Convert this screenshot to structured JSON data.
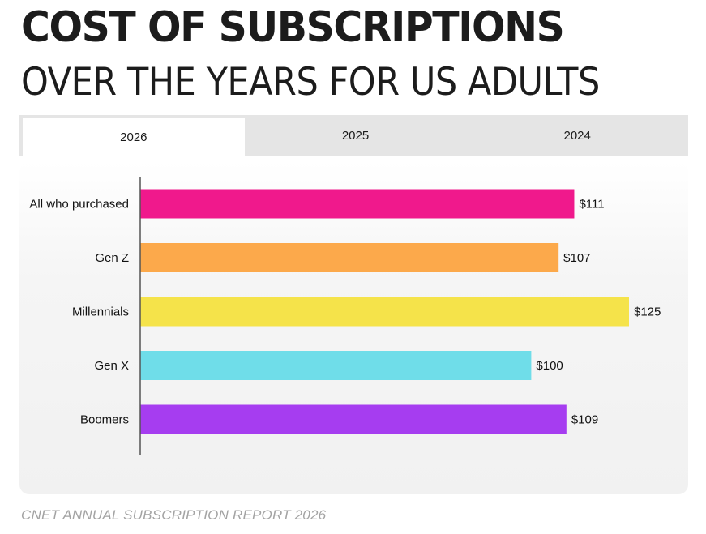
{
  "header": {
    "title": "COST OF SUBSCRIPTIONS",
    "subtitle": "OVER THE YEARS FOR US ADULTS"
  },
  "tabs": [
    {
      "label": "2026",
      "active": true
    },
    {
      "label": "2025",
      "active": false
    },
    {
      "label": "2024",
      "active": false
    }
  ],
  "chart_data": {
    "type": "bar",
    "orientation": "horizontal",
    "categories": [
      "All who purchased",
      "Gen Z",
      "Millennials",
      "Gen X",
      "Boomers"
    ],
    "values": [
      111,
      107,
      125,
      100,
      109
    ],
    "value_labels": [
      "$111",
      "$107",
      "$125",
      "$100",
      "$109"
    ],
    "colors": [
      "#f0198c",
      "#fca94b",
      "#f5e34a",
      "#6fdde9",
      "#a63df0"
    ],
    "xlim": [
      0,
      125
    ],
    "grid": false,
    "legend": "none"
  },
  "footer": {
    "source": "CNET ANNUAL SUBSCRIPTION REPORT 2026"
  }
}
